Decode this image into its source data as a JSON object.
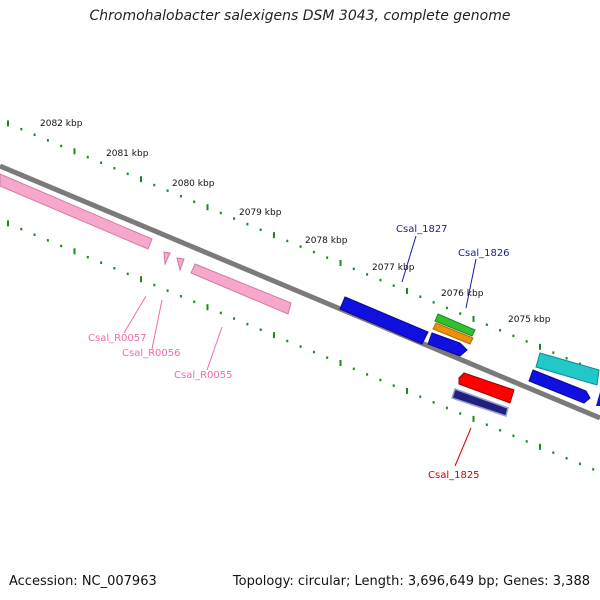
{
  "title": "Chromohalobacter salexigens DSM 3043, complete genome",
  "footer": {
    "accession": "Accession: NC_007963",
    "summary": "Topology: circular; Length: 3,696,649 bp; Genes: 3,388"
  },
  "scale_labels": [
    "2082 kbp",
    "2081 kbp",
    "2080 kbp",
    "2079 kbp",
    "2078 kbp",
    "2077 kbp",
    "2076 kbp",
    "2075 kbp"
  ],
  "gene_labels": [
    {
      "text": "Csal_1827",
      "color": "#1a1aa0"
    },
    {
      "text": "Csal_1826",
      "color": "#1a1aa0"
    },
    {
      "text": "Csal_R0057",
      "color": "#f06ab0"
    },
    {
      "text": "Csal_R0056",
      "color": "#f06ab0"
    },
    {
      "text": "Csal_R0055",
      "color": "#f06ab0"
    },
    {
      "text": "Csal_1825",
      "color": "#d00000"
    }
  ],
  "colors": {
    "backbone": "#7a7a7a",
    "ticks": "#1a8a1a",
    "rna_genes": "#f7a6cc",
    "blue_genes": "#1010e0",
    "red_gene": "#ff0000",
    "cyan_gene": "#20c8c8",
    "green_gene": "#30c030",
    "orange_gene": "#f0900a",
    "navy_gene": "#202080"
  }
}
